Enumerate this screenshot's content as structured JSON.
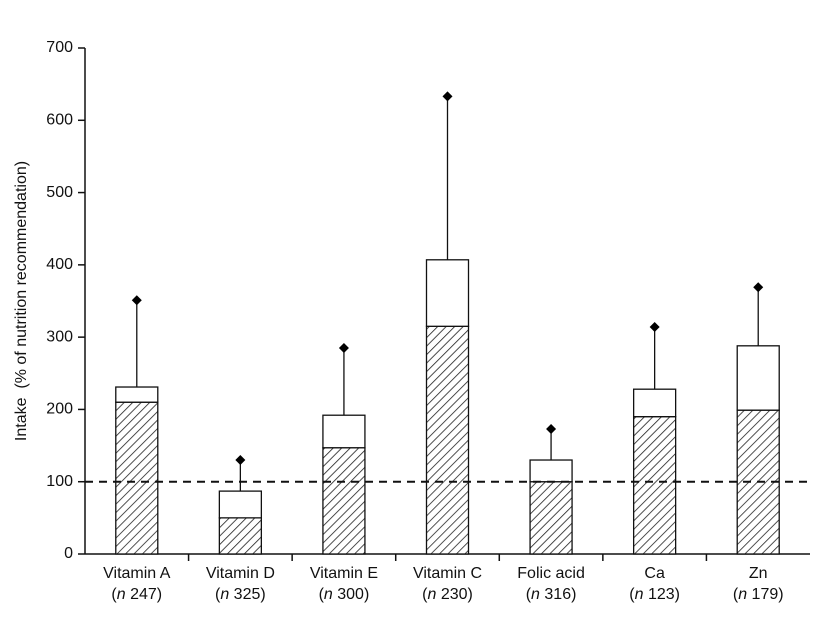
{
  "chart_data": {
    "type": "stacked_bar_error",
    "y_label": "Intake  (% of nutrition recommendation)",
    "categories": [
      "Vitamin A",
      "Vitamin D",
      "Vitamin E",
      "Vitamin C",
      "Folic acid",
      "Ca",
      "Zn"
    ],
    "category_sublabels": [
      "(n 247)",
      "(n 325)",
      "(n 300)",
      "(n 230)",
      "(n 316)",
      "(n 123)",
      "(n 179)"
    ],
    "series": [
      {
        "color": "#000000",
        "pattern": "hatch",
        "values": [
          210,
          50,
          147,
          315,
          100,
          190,
          199
        ]
      },
      {
        "color": "#ffffff",
        "pattern": "solid",
        "values": [
          21,
          37,
          45,
          92,
          30,
          38,
          89
        ]
      }
    ],
    "errors": [
      120,
      43,
      93,
      226,
      43,
      86,
      81
    ],
    "reference_line": 100,
    "ylim": [
      0,
      700
    ],
    "yticks": [
      0,
      100,
      200,
      300,
      400,
      500,
      600,
      700
    ]
  }
}
